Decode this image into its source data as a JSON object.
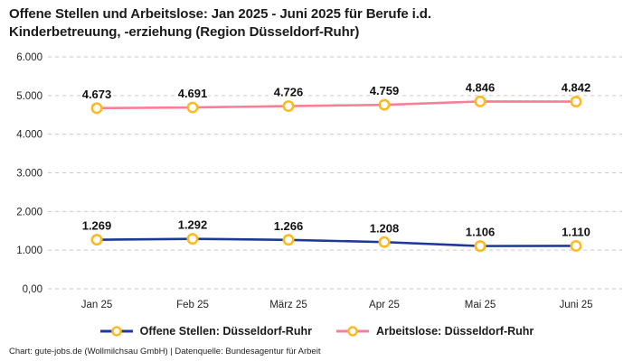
{
  "header": {
    "title_line1": "Offene Stellen und Arbeitslose: Jan 2025 - Juni 2025 für Berufe i.d.",
    "title_line2": "Kinderbetreuung, -erziehung (Region Düsseldorf-Ruhr)"
  },
  "chart_data": {
    "type": "line",
    "title": "Offene Stellen und Arbeitslose: Jan 2025 - Juni 2025 für Berufe i.d. Kinderbetreuung, -erziehung (Region Düsseldorf-Ruhr)",
    "categories": [
      "Jan 25",
      "Feb 25",
      "März 25",
      "Apr 25",
      "Mai 25",
      "Juni 25"
    ],
    "series": [
      {
        "name": "Offene Stellen: Düsseldorf-Ruhr",
        "color": "#1e3a96",
        "values": [
          1269,
          1292,
          1266,
          1208,
          1106,
          1110
        ],
        "labels": [
          "1.269",
          "1.292",
          "1.266",
          "1.208",
          "1.106",
          "1.110"
        ]
      },
      {
        "name": "Arbeitslose: Düsseldorf-Ruhr",
        "color": "#f87f95",
        "values": [
          4673,
          4691,
          4726,
          4759,
          4846,
          4842
        ],
        "labels": [
          "4.673",
          "4.691",
          "4.726",
          "4.759",
          "4.846",
          "4.842"
        ]
      }
    ],
    "marker_color": "#fbbb21",
    "grid_color": "#c9c9c9",
    "ylim": [
      0,
      6000
    ],
    "yticks": [
      {
        "v": 0,
        "label": "0,00"
      },
      {
        "v": 1000,
        "label": "1.000"
      },
      {
        "v": 2000,
        "label": "2.000"
      },
      {
        "v": 3000,
        "label": "3.000"
      },
      {
        "v": 4000,
        "label": "4.000"
      },
      {
        "v": 5000,
        "label": "5.000"
      },
      {
        "v": 6000,
        "label": "6.000"
      }
    ],
    "grid": "horizontal-dashed",
    "legend_position": "bottom"
  },
  "legend": {
    "items": [
      {
        "label": "Offene Stellen: Düsseldorf-Ruhr"
      },
      {
        "label": "Arbeitslose: Düsseldorf-Ruhr"
      }
    ]
  },
  "footer": {
    "text": "Chart: gute-jobs.de (Wollmilchsau GmbH) | Datenquelle: Bundesagentur für Arbeit"
  }
}
